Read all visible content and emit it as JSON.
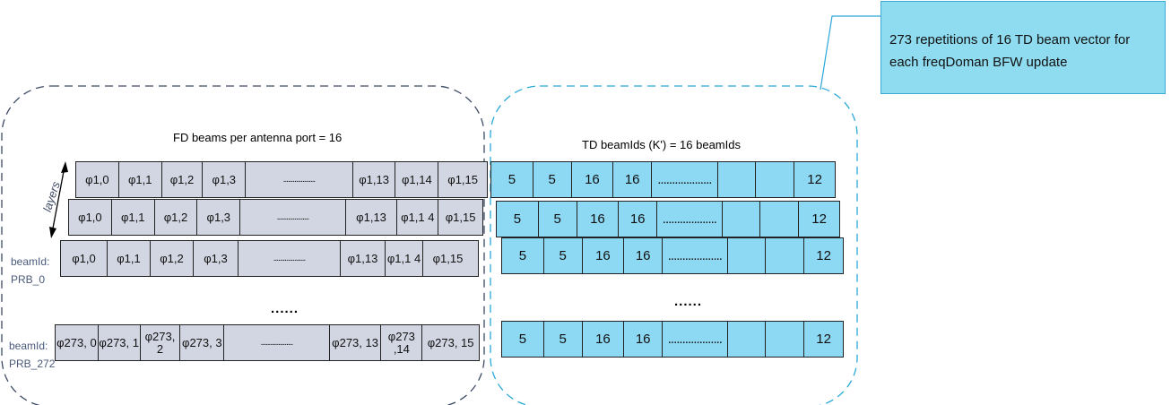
{
  "callout": {
    "line1": "273 repetitions of 16 TD beam vector for",
    "line2": "each freqDoman BFW update"
  },
  "fd_title": "FD beams per antenna port = 16",
  "td_title": "TD beamIds (K') = 16 beamIds",
  "layers_label": "layers",
  "beam_labels": {
    "prb0_line1": "beamId:",
    "prb0_line2": "PRB_0",
    "prb272_line1": "beamId:",
    "prb272_line2": "PRB_272"
  },
  "ellipsis_fd": "......",
  "ellipsis_td": "......",
  "fd_rows": [
    [
      "φ1,0",
      "φ1,1",
      "φ1,2",
      "φ1,3",
      "....................",
      "φ1,13",
      "φ1,14",
      "φ1,15"
    ],
    [
      "φ1,0",
      "φ1,1",
      "φ1,2",
      "φ1,3",
      "....................",
      "φ1,13",
      "φ1,1 4",
      "φ1,15"
    ],
    [
      "φ1,0",
      "φ1,1",
      "φ1,2",
      "φ1,3",
      "....................",
      "φ1,13",
      "φ1,1 4",
      "φ1,15"
    ],
    [
      "φ273, 0",
      "φ273, 1",
      "φ273, 2",
      "φ273, 3",
      "....................",
      "φ273, 13",
      "φ273 ,14",
      "φ273, 15"
    ]
  ],
  "td_rows": [
    [
      "5",
      "5",
      "16",
      "16",
      "...................",
      "",
      "",
      "12"
    ],
    [
      "5",
      "5",
      "16",
      "16",
      "...................",
      "",
      "",
      "12"
    ],
    [
      "5",
      "5",
      "16",
      "16",
      "...................",
      "",
      "",
      "12"
    ],
    [
      "5",
      "5",
      "16",
      "16",
      "...................",
      "",
      "",
      "12"
    ]
  ],
  "colors": {
    "fd_fill": "#d2d6e2",
    "td_fill": "#8dd8f3",
    "callout_fill": "#8fdcf1",
    "fd_boundary": "#3d4a64",
    "td_boundary": "#2aa8d8"
  }
}
